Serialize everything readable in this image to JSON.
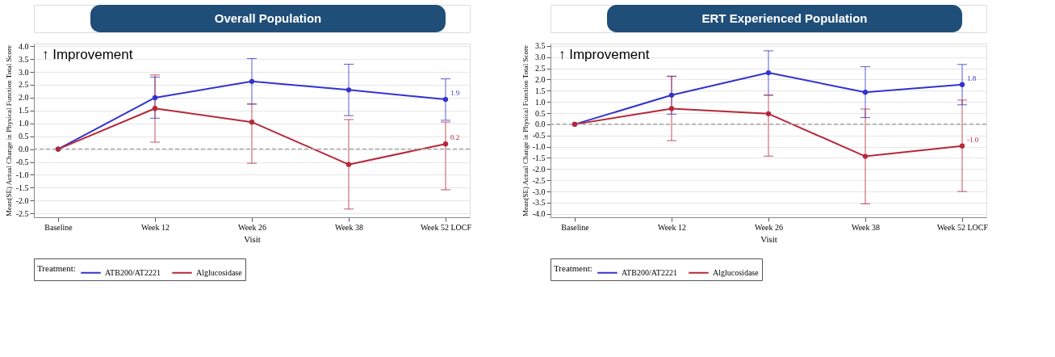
{
  "chart_data": [
    {
      "type": "line",
      "title": "Overall Population",
      "xlabel": "Visit",
      "ylabel": "Mean(SE) Actual Change in Physical Function Total Score",
      "legend_title": "Treatment:",
      "legend": "bottom",
      "grid": "y",
      "marker": "circle",
      "line_style": "solid",
      "categories": [
        "Baseline",
        "Week 12",
        "Week 26",
        "Week 38",
        "Week 52 LOCF"
      ],
      "ylim": [
        -2.65,
        4.1
      ],
      "yticks": [
        {
          "value": -2.5,
          "label": "-2.5"
        },
        {
          "value": -2,
          "label": "-2.0"
        },
        {
          "value": -1.5,
          "label": "-1.5"
        },
        {
          "value": -1,
          "label": "-1.0"
        },
        {
          "value": -0.5,
          "label": "-0.5"
        },
        {
          "value": 0,
          "label": "0.0"
        },
        {
          "value": 0.5,
          "label": "0.5"
        },
        {
          "value": 1,
          "label": "1.0"
        },
        {
          "value": 1.5,
          "label": "1.5"
        },
        {
          "value": 2,
          "label": "2.0"
        },
        {
          "value": 2.5,
          "label": "2.5"
        },
        {
          "value": 3,
          "label": "3.0"
        },
        {
          "value": 3.5,
          "label": "3.5"
        },
        {
          "value": 4,
          "label": "4.0"
        }
      ],
      "annotations": [
        "↑ Improvement"
      ],
      "ref_lines": [
        {
          "axis": "y",
          "value": 0,
          "color": "#aaaaaa",
          "line_style": "dashed"
        }
      ],
      "series": [
        {
          "name": "ATB200/AT2221",
          "color": "#3333cc",
          "values": [
            0,
            2.0,
            2.63,
            2.3,
            1.93
          ],
          "errors": [
            null,
            [
              1.2,
              2.8
            ],
            [
              1.75,
              3.52
            ],
            [
              1.3,
              3.3
            ],
            [
              1.12,
              2.73
            ]
          ],
          "value_labels": [
            null,
            null,
            null,
            null,
            "1.9"
          ]
        },
        {
          "name": "Alglucosidase",
          "color": "#b5293a",
          "values": [
            0,
            1.58,
            1.05,
            -0.6,
            0.2
          ],
          "errors": [
            null,
            [
              0.27,
              2.88
            ],
            [
              -0.55,
              1.75
            ],
            [
              -2.33,
              1.15
            ],
            [
              -1.58,
              1.05
            ]
          ],
          "value_labels": [
            null,
            null,
            null,
            null,
            "0.2"
          ]
        }
      ]
    },
    {
      "type": "line",
      "title": "ERT Experienced Population",
      "xlabel": "Visit",
      "ylabel": "Mean(SE) Actual Change in Physical Function Total Score",
      "legend_title": "Treatment:",
      "legend": "bottom",
      "grid": "y",
      "marker": "circle",
      "line_style": "solid",
      "categories": [
        "Baseline",
        "Week 12",
        "Week 26",
        "Week 38",
        "Week 52 LOCF"
      ],
      "ylim": [
        -4.15,
        3.6
      ],
      "yticks": [
        {
          "value": -4,
          "label": "-4.0"
        },
        {
          "value": -3.5,
          "label": "-3.5"
        },
        {
          "value": -3,
          "label": "-3.0"
        },
        {
          "value": -2.5,
          "label": "-2.5"
        },
        {
          "value": -2,
          "label": "-2.0"
        },
        {
          "value": -1.5,
          "label": "-1.5"
        },
        {
          "value": -1,
          "label": "-1.0"
        },
        {
          "value": -0.5,
          "label": "-0.5"
        },
        {
          "value": 0,
          "label": "0.0"
        },
        {
          "value": 0.5,
          "label": "0.5"
        },
        {
          "value": 1,
          "label": "1.0"
        },
        {
          "value": 1.5,
          "label": "1.5"
        },
        {
          "value": 2,
          "label": "2.0"
        },
        {
          "value": 2.5,
          "label": "2.5"
        },
        {
          "value": 3,
          "label": "3.0"
        },
        {
          "value": 3.5,
          "label": "3.5"
        }
      ],
      "annotations": [
        "↑ Improvement"
      ],
      "ref_lines": [
        {
          "axis": "y",
          "value": 0,
          "color": "#aaaaaa",
          "line_style": "dashed"
        }
      ],
      "series": [
        {
          "name": "ATB200/AT2221",
          "color": "#3333cc",
          "values": [
            0,
            1.3,
            2.3,
            1.43,
            1.77
          ],
          "errors": [
            null,
            [
              0.45,
              2.15
            ],
            [
              1.3,
              3.28
            ],
            [
              0.3,
              2.57
            ],
            [
              0.87,
              2.67
            ]
          ],
          "value_labels": [
            null,
            null,
            null,
            null,
            "1.8"
          ]
        },
        {
          "name": "Alglucosidase",
          "color": "#b5293a",
          "values": [
            0,
            0.7,
            0.47,
            -1.43,
            -0.97
          ],
          "errors": [
            null,
            [
              -0.73,
              2.13
            ],
            [
              -1.42,
              1.3
            ],
            [
              -3.55,
              0.68
            ],
            [
              -3.0,
              1.08
            ]
          ],
          "value_labels": [
            null,
            null,
            null,
            null,
            "-1.0"
          ]
        }
      ]
    }
  ]
}
